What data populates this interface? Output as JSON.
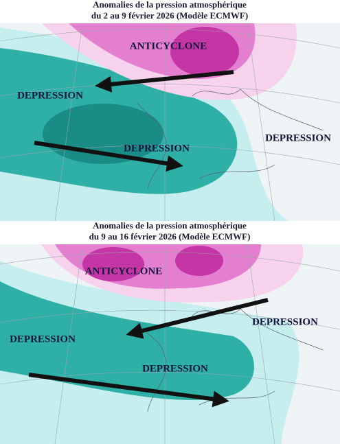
{
  "panels": [
    {
      "title": [
        "Anomalies de la pression atmosphérique",
        "du 2 au 9 février 2026 (Modèle ECMWF)"
      ],
      "labels": [
        "ANTICYCLONE",
        "DEPRESSION",
        "DEPRESSION",
        "DEPRESSION"
      ]
    },
    {
      "title": [
        "Anomalies de la pression atmosphérique",
        "du 9 au 16 février 2026 (Modèle ECMWF)"
      ],
      "labels": [
        "ANTICYCLONE",
        "DEPRESSION",
        "DEPRESSION",
        "DEPRESSION"
      ]
    }
  ]
}
